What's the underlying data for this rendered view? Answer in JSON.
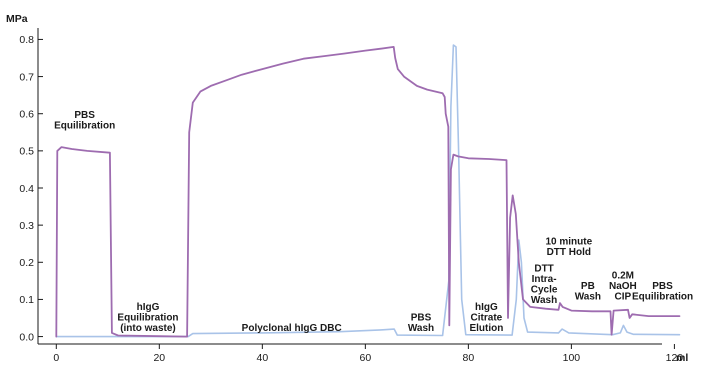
{
  "chart_data": {
    "type": "line",
    "title": "",
    "xlabel": "",
    "ylabel": "",
    "x_unit": "ml",
    "y_unit": "MPa",
    "xlim": [
      -2,
      124
    ],
    "ylim": [
      -0.02,
      0.82
    ],
    "xticks": [
      0,
      20,
      40,
      60,
      80,
      100,
      120
    ],
    "yticks": [
      0.0,
      0.1,
      0.2,
      0.3,
      0.4,
      0.5,
      0.6,
      0.7,
      0.8
    ],
    "grid": false,
    "series": [
      {
        "color": "#9e6cb0",
        "points": [
          [
            0,
            0.0
          ],
          [
            0.2,
            0.5
          ],
          [
            1,
            0.51
          ],
          [
            3,
            0.505
          ],
          [
            6,
            0.5
          ],
          [
            10.4,
            0.495
          ],
          [
            10.8,
            0.01
          ],
          [
            12,
            0.003
          ],
          [
            20,
            0.001
          ],
          [
            25.4,
            0.0
          ],
          [
            25.8,
            0.55
          ],
          [
            26.5,
            0.63
          ],
          [
            28,
            0.66
          ],
          [
            30,
            0.675
          ],
          [
            33,
            0.69
          ],
          [
            36,
            0.705
          ],
          [
            40,
            0.72
          ],
          [
            44,
            0.735
          ],
          [
            48,
            0.748
          ],
          [
            52,
            0.755
          ],
          [
            56,
            0.762
          ],
          [
            60,
            0.77
          ],
          [
            63,
            0.775
          ],
          [
            65.5,
            0.78
          ],
          [
            65.8,
            0.75
          ],
          [
            66.3,
            0.72
          ],
          [
            67.5,
            0.7
          ],
          [
            70,
            0.675
          ],
          [
            72,
            0.665
          ],
          [
            75,
            0.655
          ],
          [
            75.4,
            0.645
          ],
          [
            75.6,
            0.6
          ],
          [
            76.1,
            0.565
          ],
          [
            76.3,
            0.03
          ],
          [
            76.6,
            0.45
          ],
          [
            77.1,
            0.49
          ],
          [
            78,
            0.485
          ],
          [
            80,
            0.48
          ],
          [
            84,
            0.478
          ],
          [
            87.4,
            0.475
          ],
          [
            87.7,
            0.05
          ],
          [
            88.1,
            0.32
          ],
          [
            88.6,
            0.38
          ],
          [
            89.2,
            0.33
          ],
          [
            89.8,
            0.2
          ],
          [
            90.6,
            0.1
          ],
          [
            92,
            0.08
          ],
          [
            95,
            0.075
          ],
          [
            97.5,
            0.072
          ],
          [
            97.8,
            0.09
          ],
          [
            98.3,
            0.08
          ],
          [
            100,
            0.07
          ],
          [
            104,
            0.068
          ],
          [
            107.6,
            0.068
          ],
          [
            107.8,
            0.005
          ],
          [
            108.2,
            0.07
          ],
          [
            111,
            0.072
          ],
          [
            111.3,
            0.05
          ],
          [
            111.8,
            0.06
          ],
          [
            115,
            0.055
          ],
          [
            121,
            0.055
          ]
        ]
      },
      {
        "color": "#a9c3e8",
        "points": [
          [
            0,
            0.0
          ],
          [
            25.6,
            0.0
          ],
          [
            26.5,
            0.008
          ],
          [
            40,
            0.01
          ],
          [
            55,
            0.013
          ],
          [
            63,
            0.018
          ],
          [
            65.6,
            0.02
          ],
          [
            66.2,
            0.004
          ],
          [
            75,
            0.003
          ],
          [
            76.2,
            0.15
          ],
          [
            76.6,
            0.62
          ],
          [
            77.1,
            0.785
          ],
          [
            77.6,
            0.78
          ],
          [
            78.1,
            0.5
          ],
          [
            78.7,
            0.1
          ],
          [
            79.5,
            0.005
          ],
          [
            88.5,
            0.004
          ],
          [
            89.3,
            0.1
          ],
          [
            89.8,
            0.26
          ],
          [
            90.3,
            0.2
          ],
          [
            90.8,
            0.05
          ],
          [
            91.5,
            0.012
          ],
          [
            97.5,
            0.01
          ],
          [
            98.2,
            0.02
          ],
          [
            99.5,
            0.01
          ],
          [
            108,
            0.005
          ],
          [
            109.5,
            0.01
          ],
          [
            110.1,
            0.03
          ],
          [
            110.8,
            0.012
          ],
          [
            112,
            0.006
          ],
          [
            121,
            0.005
          ]
        ]
      }
    ],
    "annotations": [
      {
        "lines": [
          "PBS",
          "Equilibration"
        ],
        "x": 5.5,
        "y": 0.56
      },
      {
        "lines": [
          "hIgG",
          "Equilibration",
          "(into waste)"
        ],
        "x": 17.8,
        "y": 0.015
      },
      {
        "lines": [
          "Polyclonal hIgG DBC"
        ],
        "x": 45.7,
        "y": 0.015
      },
      {
        "lines": [
          "PBS",
          "Wash"
        ],
        "x": 70.8,
        "y": 0.015
      },
      {
        "lines": [
          "hIgG",
          "Citrate",
          "Elution"
        ],
        "x": 83.5,
        "y": 0.015
      },
      {
        "lines": [
          "10 minute",
          "DTT Hold"
        ],
        "x": 99.5,
        "y": 0.22
      },
      {
        "lines": [
          "DTT",
          "Intra-",
          "Cycle",
          "Wash"
        ],
        "x": 94.7,
        "y": 0.09
      },
      {
        "lines": [
          "PB",
          "Wash"
        ],
        "x": 103.2,
        "y": 0.1
      },
      {
        "lines": [
          "0.2M",
          "NaOH",
          "CIP"
        ],
        "x": 110.0,
        "y": 0.1
      },
      {
        "lines": [
          "PBS",
          "Equilibration"
        ],
        "x": 117.7,
        "y": 0.1
      }
    ]
  }
}
